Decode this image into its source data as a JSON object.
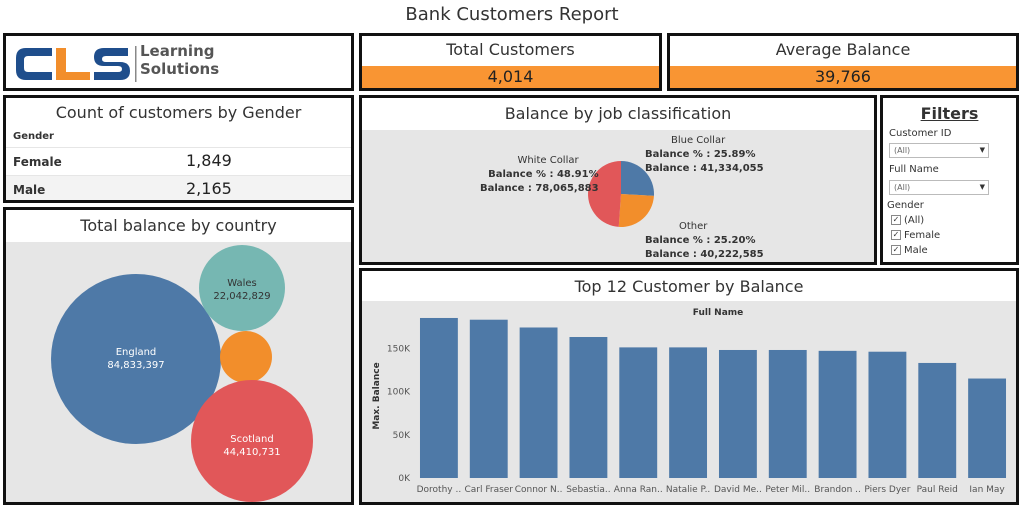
{
  "report_title": "Bank Customers Report",
  "logo": {
    "letters": "CLS",
    "line1": "Learning",
    "line2": "Solutions"
  },
  "kpis": {
    "total_customers": {
      "label": "Total Customers",
      "value": "4,014"
    },
    "average_balance": {
      "label": "Average Balance",
      "value": "39,766"
    }
  },
  "gender": {
    "title": "Count of customers by Gender",
    "column_header": "Gender",
    "rows": [
      {
        "label": "Female",
        "value": "1,849"
      },
      {
        "label": "Male",
        "value": "2,165"
      }
    ]
  },
  "country": {
    "title": "Total balance by country",
    "bubbles": [
      {
        "name": "England",
        "value": "84,833,397",
        "color": "#4e79a7"
      },
      {
        "name": "Wales",
        "value": "22,042,829",
        "color": "#76b7b2"
      },
      {
        "name": "",
        "value": "",
        "color": "#f28e2b"
      },
      {
        "name": "Scotland",
        "value": "44,410,731",
        "color": "#e15759"
      }
    ]
  },
  "job": {
    "title": "Balance by job classification",
    "slices": [
      {
        "name": "White Collar",
        "pct_label": "Balance % : 48.91%",
        "bal_label": "Balance : 78,065,883",
        "pct": 48.91,
        "color": "#e15759"
      },
      {
        "name": "Blue Collar",
        "pct_label": "Balance % : 25.89%",
        "bal_label": "Balance : 41,334,055",
        "pct": 25.89,
        "color": "#4e79a7"
      },
      {
        "name": "Other",
        "pct_label": "Balance % : 25.20%",
        "bal_label": "Balance : 40,222,585",
        "pct": 25.2,
        "color": "#f28e2b"
      }
    ]
  },
  "filters": {
    "title": "Filters",
    "customer_id": {
      "label": "Customer ID",
      "value": "(All)"
    },
    "full_name": {
      "label": "Full Name",
      "value": "(All)"
    },
    "gender": {
      "label": "Gender",
      "options": [
        "(All)",
        "Female",
        "Male"
      ]
    }
  },
  "chart_data": {
    "type": "bar",
    "title": "Top 12 Customer by Balance",
    "column_header": "Full Name",
    "ylabel": "Max. Balance",
    "categories": [
      "Dorothy ..",
      "Carl Fraser",
      "Connor N..",
      "Sebastia..",
      "Anna Ran..",
      "Natalie P..",
      "David Me..",
      "Peter Mil..",
      "Brandon ..",
      "Piers Dyer",
      "Paul Reid",
      "Ian May"
    ],
    "values": [
      185000,
      183000,
      174000,
      163000,
      151000,
      151000,
      148000,
      148000,
      147000,
      146000,
      133000,
      115000
    ],
    "ylim": [
      0,
      200000
    ],
    "yticks": [
      0,
      50000,
      100000,
      150000
    ],
    "ytick_labels": [
      "0K",
      "50K",
      "100K",
      "150K"
    ],
    "color": "#4e79a7",
    "grid": false
  }
}
